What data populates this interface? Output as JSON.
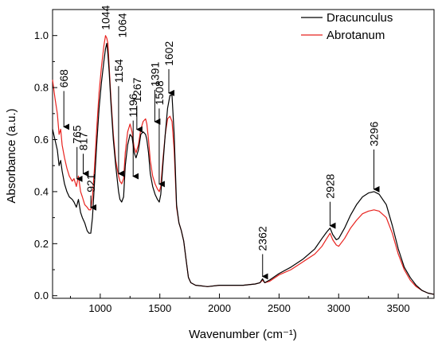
{
  "chart_data": {
    "type": "line",
    "title": "",
    "xlabel": "Wavenumber (cm⁻¹)",
    "ylabel": "Absorbance (a.u.)",
    "xlim": [
      600,
      3800
    ],
    "ylim": [
      -0.01,
      1.1
    ],
    "x_ticks": [
      1000,
      1500,
      2000,
      2500,
      3000,
      3500
    ],
    "x_tick_labels": [
      "1000",
      "1500",
      "2000",
      "2500",
      "3000",
      "3500"
    ],
    "y_ticks": [
      0.0,
      0.2,
      0.4,
      0.6,
      0.8,
      1.0
    ],
    "y_tick_labels": [
      "0.0",
      "0.2",
      "0.4",
      "0.6",
      "0.8",
      "1.0"
    ],
    "legend": {
      "placement": "top-right",
      "entries": [
        "Dracunculus",
        "Abrotanum"
      ]
    },
    "colors": {
      "Dracunculus": "#000000",
      "Abrotanum": "#e8231f"
    },
    "series": [
      {
        "name": "Dracunculus",
        "x": [
          600,
          620,
          640,
          655,
          668,
          680,
          700,
          720,
          740,
          765,
          780,
          800,
          817,
          835,
          850,
          870,
          890,
          905,
          921,
          935,
          950,
          970,
          990,
          1010,
          1030,
          1044,
          1055,
          1064,
          1075,
          1090,
          1110,
          1130,
          1154,
          1165,
          1180,
          1196,
          1210,
          1230,
          1250,
          1267,
          1285,
          1300,
          1320,
          1340,
          1360,
          1380,
          1391,
          1405,
          1420,
          1440,
          1460,
          1480,
          1495,
          1508,
          1525,
          1545,
          1565,
          1585,
          1602,
          1620,
          1640,
          1660,
          1680,
          1700,
          1720,
          1740,
          1760,
          1800,
          1900,
          2000,
          2100,
          2200,
          2300,
          2340,
          2362,
          2380,
          2420,
          2500,
          2600,
          2700,
          2800,
          2860,
          2900,
          2928,
          2950,
          2980,
          3000,
          3050,
          3100,
          3150,
          3200,
          3250,
          3296,
          3340,
          3400,
          3450,
          3500,
          3550,
          3600,
          3650,
          3700,
          3750,
          3800
        ],
        "y": [
          0.64,
          0.6,
          0.56,
          0.5,
          0.52,
          0.48,
          0.43,
          0.4,
          0.38,
          0.37,
          0.36,
          0.34,
          0.37,
          0.32,
          0.3,
          0.28,
          0.25,
          0.24,
          0.24,
          0.3,
          0.42,
          0.58,
          0.72,
          0.82,
          0.9,
          0.95,
          0.97,
          0.93,
          0.86,
          0.74,
          0.6,
          0.5,
          0.4,
          0.37,
          0.36,
          0.38,
          0.5,
          0.58,
          0.62,
          0.61,
          0.55,
          0.53,
          0.56,
          0.62,
          0.63,
          0.62,
          0.6,
          0.55,
          0.47,
          0.42,
          0.39,
          0.37,
          0.36,
          0.39,
          0.5,
          0.62,
          0.72,
          0.77,
          0.77,
          0.62,
          0.35,
          0.28,
          0.25,
          0.21,
          0.14,
          0.07,
          0.05,
          0.04,
          0.035,
          0.04,
          0.04,
          0.04,
          0.045,
          0.05,
          0.065,
          0.05,
          0.06,
          0.085,
          0.11,
          0.14,
          0.18,
          0.22,
          0.245,
          0.26,
          0.235,
          0.215,
          0.22,
          0.26,
          0.31,
          0.35,
          0.38,
          0.395,
          0.4,
          0.39,
          0.35,
          0.27,
          0.18,
          0.11,
          0.07,
          0.04,
          0.02,
          0.01,
          0.005
        ]
      },
      {
        "name": "Abrotanum",
        "x": [
          600,
          620,
          640,
          655,
          668,
          680,
          700,
          720,
          740,
          765,
          780,
          800,
          817,
          835,
          850,
          870,
          890,
          905,
          921,
          935,
          950,
          970,
          990,
          1010,
          1030,
          1044,
          1055,
          1064,
          1075,
          1090,
          1110,
          1130,
          1154,
          1165,
          1180,
          1196,
          1210,
          1230,
          1250,
          1267,
          1285,
          1300,
          1320,
          1340,
          1360,
          1380,
          1391,
          1405,
          1420,
          1440,
          1460,
          1480,
          1495,
          1508,
          1525,
          1545,
          1565,
          1585,
          1602,
          1620,
          1640,
          1660,
          1680,
          1700,
          1720,
          1740,
          1760,
          1800,
          1900,
          2000,
          2100,
          2200,
          2300,
          2340,
          2362,
          2380,
          2420,
          2500,
          2600,
          2700,
          2800,
          2860,
          2900,
          2928,
          2950,
          2980,
          3000,
          3050,
          3100,
          3150,
          3200,
          3250,
          3296,
          3340,
          3400,
          3450,
          3500,
          3550,
          3600,
          3650,
          3700,
          3750,
          3800
        ],
        "y": [
          0.83,
          0.76,
          0.7,
          0.62,
          0.64,
          0.58,
          0.53,
          0.49,
          0.46,
          0.44,
          0.45,
          0.42,
          0.46,
          0.4,
          0.38,
          0.35,
          0.34,
          0.33,
          0.33,
          0.38,
          0.48,
          0.64,
          0.78,
          0.88,
          0.96,
          1.0,
          0.99,
          0.97,
          0.88,
          0.76,
          0.62,
          0.52,
          0.46,
          0.44,
          0.43,
          0.45,
          0.55,
          0.63,
          0.66,
          0.63,
          0.57,
          0.55,
          0.58,
          0.64,
          0.67,
          0.68,
          0.66,
          0.6,
          0.52,
          0.46,
          0.43,
          0.41,
          0.4,
          0.42,
          0.52,
          0.62,
          0.68,
          0.69,
          0.67,
          0.56,
          0.34,
          0.28,
          0.25,
          0.21,
          0.14,
          0.07,
          0.05,
          0.04,
          0.035,
          0.04,
          0.04,
          0.04,
          0.045,
          0.05,
          0.06,
          0.05,
          0.055,
          0.08,
          0.1,
          0.13,
          0.16,
          0.19,
          0.22,
          0.24,
          0.215,
          0.195,
          0.19,
          0.22,
          0.26,
          0.29,
          0.315,
          0.325,
          0.33,
          0.325,
          0.3,
          0.24,
          0.16,
          0.1,
          0.06,
          0.035,
          0.02,
          0.01,
          0.005
        ]
      }
    ],
    "annotations": [
      {
        "label": "668",
        "x": 668
      },
      {
        "label": "765",
        "x": 765
      },
      {
        "label": "817",
        "x": 817
      },
      {
        "label": "921",
        "x": 921
      },
      {
        "label": "1044",
        "x": 1044
      },
      {
        "label": "1064",
        "x": 1064
      },
      {
        "label": "1154",
        "x": 1154
      },
      {
        "label": "1196",
        "x": 1196
      },
      {
        "label": "1267",
        "x": 1267
      },
      {
        "label": "1391",
        "x": 1391
      },
      {
        "label": "1508",
        "x": 1508
      },
      {
        "label": "1602",
        "x": 1602
      },
      {
        "label": "2362",
        "x": 2362
      },
      {
        "label": "2928",
        "x": 2928
      },
      {
        "label": "3296",
        "x": 3296
      }
    ]
  }
}
